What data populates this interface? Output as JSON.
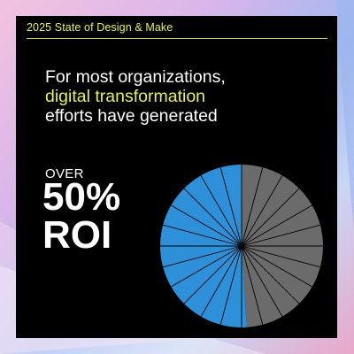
{
  "header": {
    "label": "2025 State of Design & Make"
  },
  "headline": {
    "line1": "For most organizations,",
    "line2": "digital transformation",
    "line3": "efforts have generated"
  },
  "stat": {
    "prefix": "OVER",
    "value": "50%",
    "unit": "ROI"
  },
  "colors": {
    "accent": "#e8f24a",
    "blue": "#2e90d8",
    "gray": "#6b6b6b",
    "card": "#000000"
  },
  "chart_data": {
    "type": "pie",
    "slices": [
      {
        "value": 51,
        "color": "#2e90d8"
      },
      {
        "value": 49,
        "color": "#6b6b6b"
      }
    ],
    "segment_count": 24,
    "title": "",
    "legend": "none"
  }
}
